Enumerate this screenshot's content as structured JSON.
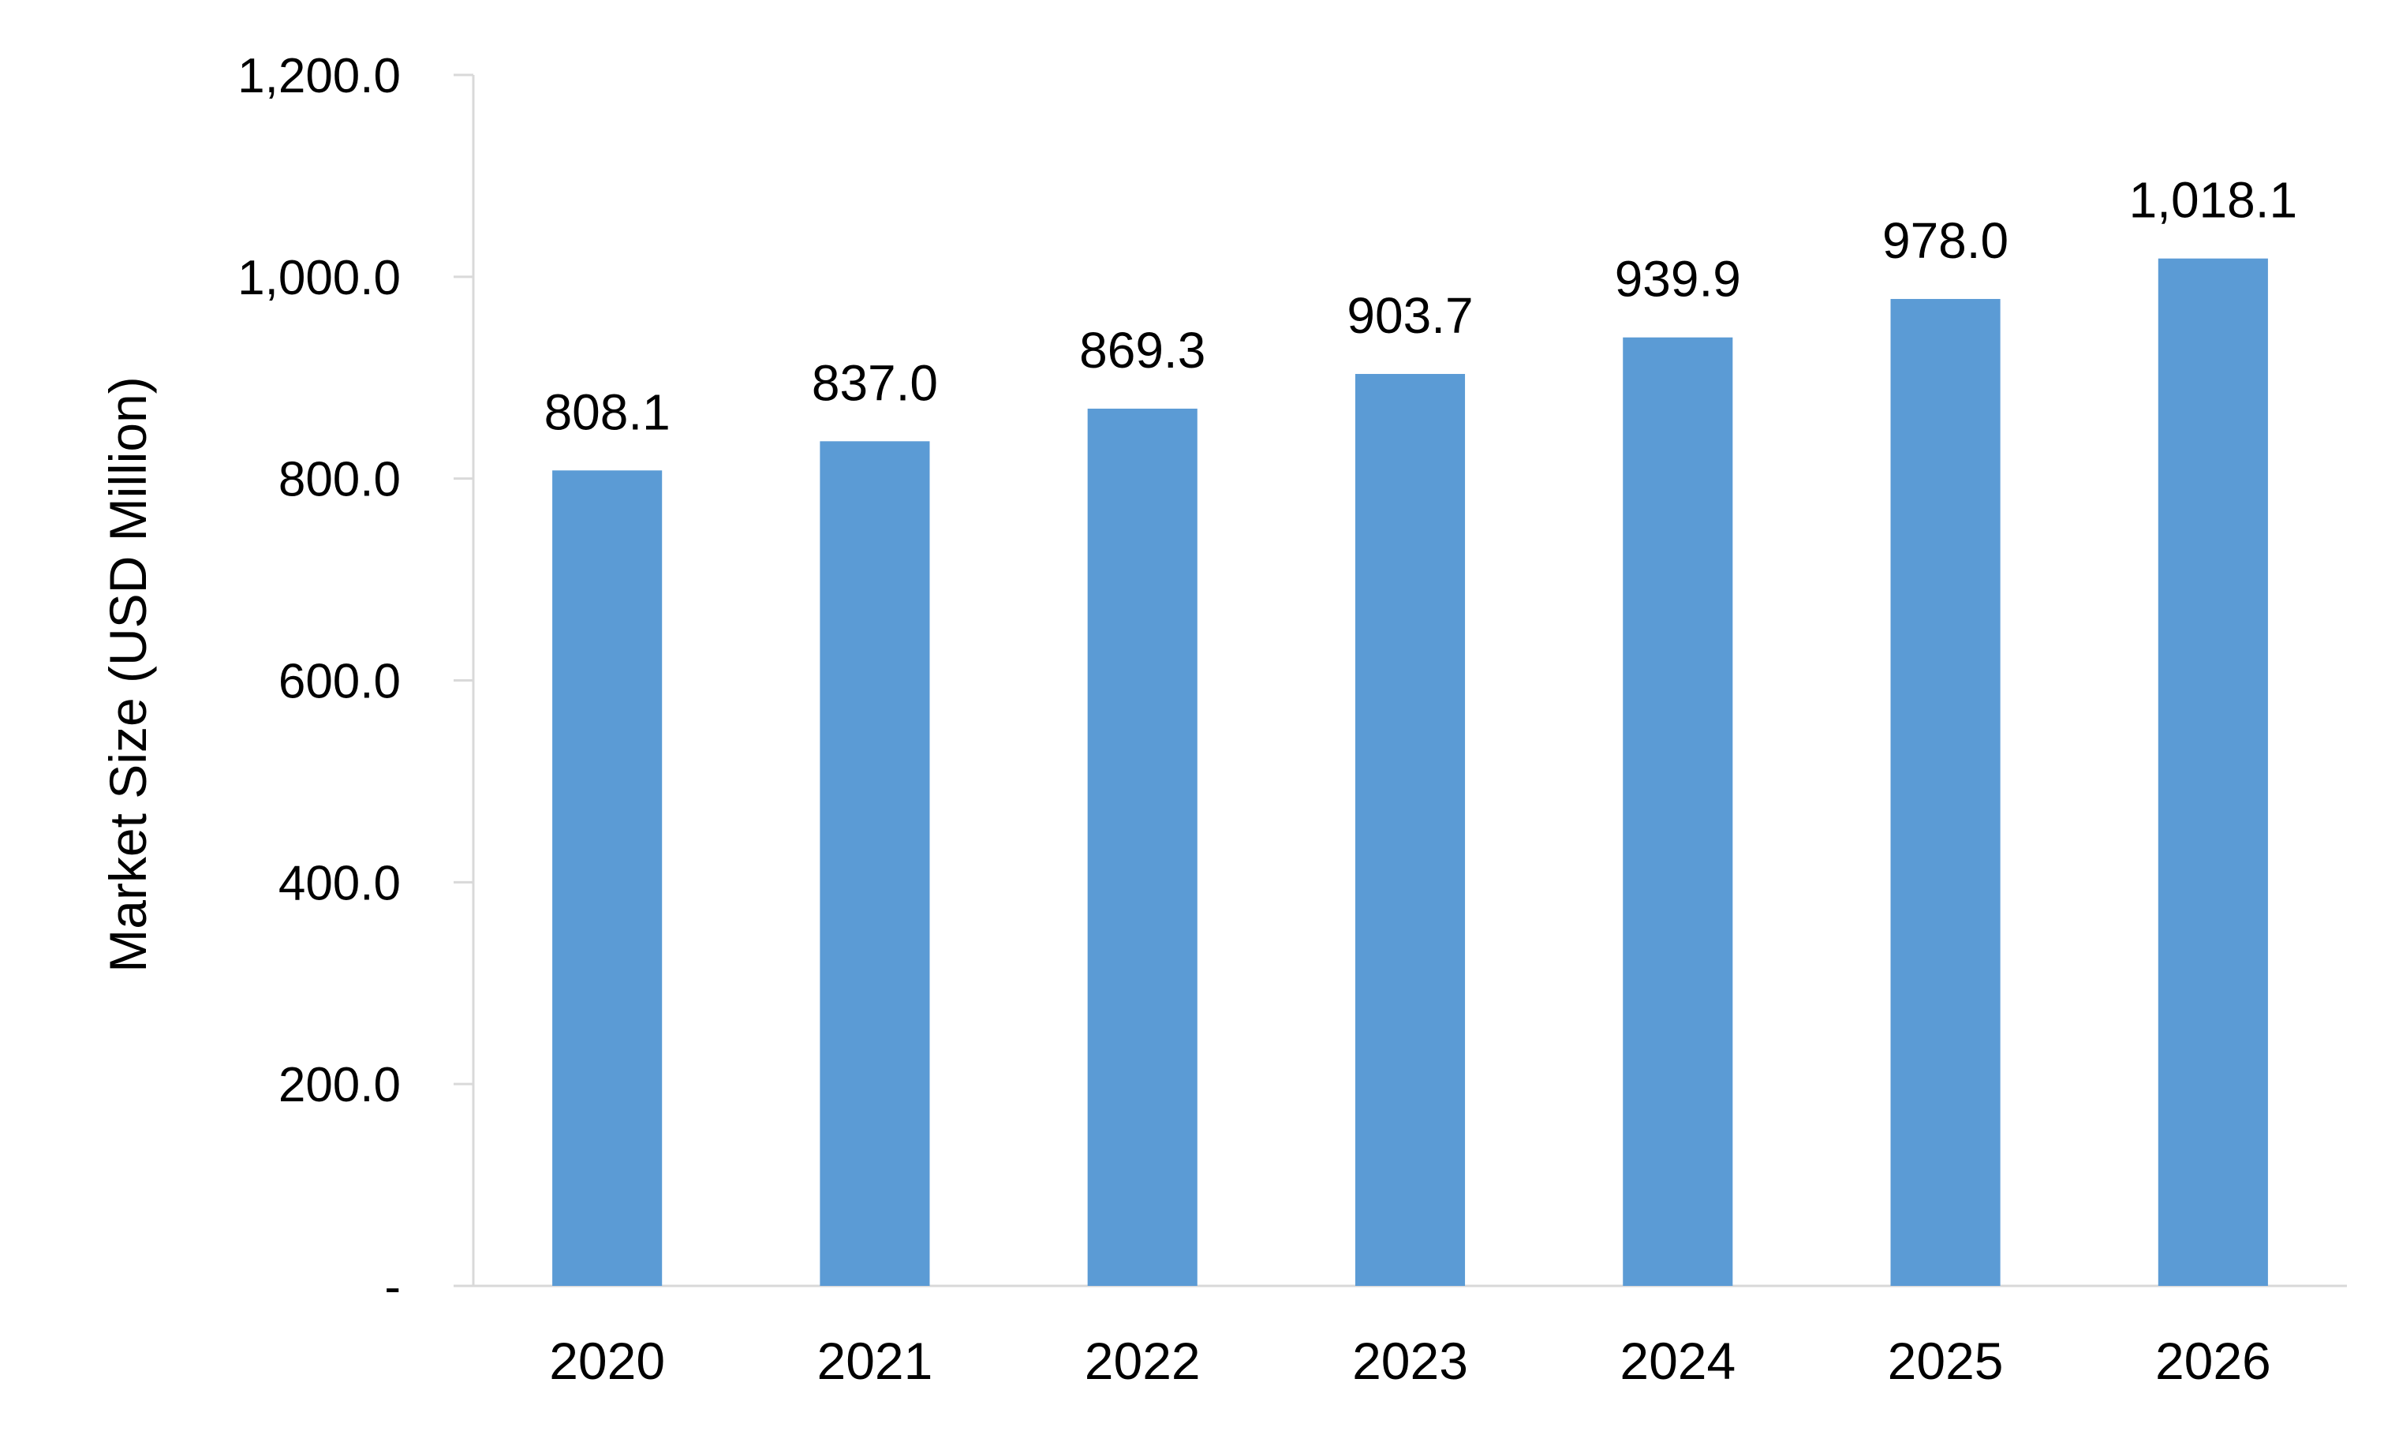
{
  "chart_data": {
    "type": "bar",
    "title": "",
    "xlabel": "",
    "ylabel": "Market Size (USD Million)",
    "categories": [
      "2020",
      "2021",
      "2022",
      "2023",
      "2024",
      "2025",
      "2026"
    ],
    "values": [
      808.1,
      837.0,
      869.3,
      903.7,
      939.9,
      978.0,
      1018.1
    ],
    "data_labels": [
      "808.1",
      "837.0",
      "869.3",
      "903.7",
      "939.9",
      "978.0",
      "1,018.1"
    ],
    "ylim": [
      0,
      1200
    ],
    "yticks": [
      0,
      200,
      400,
      600,
      800,
      1000,
      1200
    ],
    "ytick_labels": [
      "-",
      "200.0",
      "400.0",
      "600.0",
      "800.0",
      "1,000.0",
      "1,200.0"
    ],
    "bar_color": "#5B9BD5",
    "axis_color": "#D9D9D9",
    "grid": false,
    "legend": "none"
  }
}
